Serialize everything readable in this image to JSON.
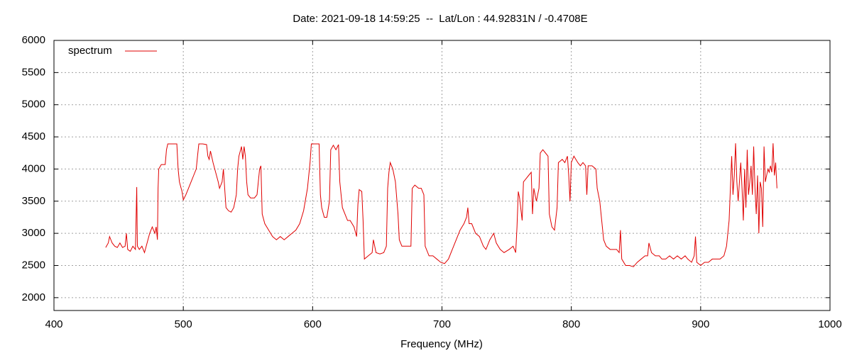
{
  "chart_data": {
    "type": "line",
    "title": "Date: 2021-09-18 14:59:25  --  Lat/Lon : 44.92831N / -0.4708E",
    "x_label": "Frequency (MHz)",
    "xlim": [
      400,
      1000
    ],
    "xticks": [
      400,
      500,
      600,
      700,
      800,
      900,
      1000
    ],
    "ylim": [
      1800,
      6000
    ],
    "yticks": [
      2000,
      2500,
      3000,
      3500,
      4000,
      4500,
      5000,
      5500,
      6000
    ],
    "grid": true,
    "legend": "upper left",
    "x": [
      440,
      442,
      443,
      445,
      447,
      449,
      451,
      453,
      455,
      456,
      457,
      459,
      461,
      463,
      464,
      464.5,
      466,
      468,
      470,
      472,
      474,
      476,
      478,
      479,
      480,
      480.5,
      481,
      483,
      486,
      487,
      488,
      492,
      495,
      496,
      497,
      499,
      500,
      502,
      504,
      506,
      508,
      510,
      511,
      512,
      515,
      518,
      519,
      520,
      521,
      523,
      525,
      527,
      528,
      530,
      531,
      532,
      533,
      535,
      537,
      539,
      541,
      542,
      543,
      545,
      546,
      547,
      548,
      549,
      550,
      552,
      555,
      557,
      559,
      560,
      561,
      563,
      566,
      569,
      572,
      575,
      578,
      581,
      584,
      587,
      590,
      593,
      596,
      598,
      599,
      602,
      605,
      606,
      607,
      609,
      611,
      613,
      614,
      616,
      618,
      620,
      621,
      623,
      625,
      627,
      629,
      632,
      634,
      635,
      636,
      638,
      639,
      640,
      643,
      646,
      647,
      649,
      652,
      655,
      657,
      658,
      659,
      660,
      662,
      664,
      665,
      666,
      667,
      669,
      672,
      674,
      676,
      677,
      679,
      682,
      684,
      686,
      687,
      690,
      693,
      696,
      699,
      702,
      705,
      708,
      711,
      714,
      717,
      719,
      720,
      721,
      723,
      726,
      729,
      732,
      734,
      737,
      740,
      742,
      745,
      748,
      752,
      755,
      757,
      758,
      759,
      760,
      762,
      763,
      765,
      767,
      769,
      770,
      771,
      773,
      774,
      775,
      776,
      778,
      780,
      782,
      783,
      784,
      785,
      787,
      789,
      790,
      793,
      795,
      797,
      798,
      799,
      800,
      802,
      805,
      807,
      809,
      811,
      812,
      813,
      816,
      819,
      820,
      822,
      823,
      825,
      827,
      830,
      833,
      835,
      837,
      838,
      839,
      842,
      845,
      848,
      851,
      854,
      857,
      859,
      860,
      862,
      865,
      868,
      870,
      873,
      876,
      879,
      882,
      885,
      888,
      890,
      893,
      895,
      896,
      897,
      900,
      903,
      906,
      909,
      912,
      915,
      918,
      920,
      922,
      923,
      924,
      925,
      926,
      927,
      928,
      929,
      931,
      932,
      933,
      934,
      935,
      936,
      937,
      938,
      939,
      940,
      941,
      942,
      943,
      944,
      945,
      946,
      947,
      948,
      949,
      950,
      951,
      952,
      953,
      954,
      955,
      956,
      957,
      958,
      959
    ],
    "series": [
      {
        "name": "spectrum",
        "color": "#e00000",
        "values": [
          2780,
          2850,
          2950,
          2850,
          2800,
          2780,
          2850,
          2780,
          2800,
          3000,
          2750,
          2720,
          2800,
          2750,
          3720,
          2800,
          2750,
          2800,
          2700,
          2850,
          3000,
          3100,
          3000,
          3100,
          2900,
          3700,
          4000,
          4070,
          4070,
          4300,
          4390,
          4390,
          4390,
          4000,
          3800,
          3650,
          3520,
          3600,
          3700,
          3800,
          3900,
          4000,
          4200,
          4390,
          4390,
          4380,
          4200,
          4150,
          4280,
          4100,
          3950,
          3800,
          3700,
          3800,
          4000,
          3700,
          3400,
          3350,
          3330,
          3400,
          3600,
          4000,
          4200,
          4350,
          4150,
          4350,
          4200,
          3800,
          3600,
          3550,
          3550,
          3600,
          4000,
          4050,
          3300,
          3150,
          3050,
          2950,
          2900,
          2950,
          2900,
          2950,
          3000,
          3050,
          3150,
          3350,
          3700,
          4100,
          4390,
          4390,
          4390,
          3600,
          3400,
          3250,
          3250,
          3500,
          4300,
          4370,
          4300,
          4380,
          3800,
          3400,
          3300,
          3200,
          3200,
          3100,
          2950,
          3450,
          3680,
          3650,
          3200,
          2600,
          2650,
          2700,
          2900,
          2700,
          2680,
          2700,
          2800,
          3700,
          3950,
          4100,
          4000,
          3800,
          3550,
          3300,
          2900,
          2800,
          2800,
          2800,
          2800,
          3700,
          3750,
          3700,
          3700,
          3600,
          2800,
          2650,
          2650,
          2600,
          2550,
          2530,
          2600,
          2750,
          2900,
          3050,
          3150,
          3250,
          3400,
          3150,
          3150,
          3000,
          2950,
          2800,
          2750,
          2900,
          3000,
          2850,
          2750,
          2700,
          2750,
          2800,
          2700,
          3100,
          3650,
          3550,
          3200,
          3800,
          3850,
          3900,
          3950,
          3300,
          3700,
          3500,
          3600,
          3700,
          4250,
          4300,
          4250,
          4200,
          3300,
          3200,
          3100,
          3050,
          3400,
          4100,
          4150,
          4100,
          4200,
          3900,
          3500,
          4100,
          4200,
          4100,
          4050,
          4100,
          4050,
          3600,
          4050,
          4050,
          4000,
          3700,
          3500,
          3300,
          2900,
          2800,
          2750,
          2750,
          2750,
          2700,
          3050,
          2600,
          2500,
          2500,
          2480,
          2550,
          2600,
          2650,
          2650,
          2850,
          2700,
          2650,
          2650,
          2600,
          2600,
          2650,
          2600,
          2650,
          2600,
          2650,
          2600,
          2550,
          2650,
          2950,
          2550,
          2500,
          2550,
          2550,
          2600,
          2600,
          2600,
          2650,
          2800,
          3200,
          3700,
          4200,
          3600,
          3900,
          4400,
          3800,
          3500,
          4100,
          3700,
          3200,
          4000,
          3400,
          4300,
          3600,
          3800,
          4050,
          3600,
          4350,
          3700,
          3300,
          3900,
          3000,
          3800,
          3700,
          3100,
          4350,
          3800,
          3900,
          4000,
          3950,
          4050,
          3950,
          4400,
          3900,
          4100,
          3700
        ]
      }
    ]
  }
}
